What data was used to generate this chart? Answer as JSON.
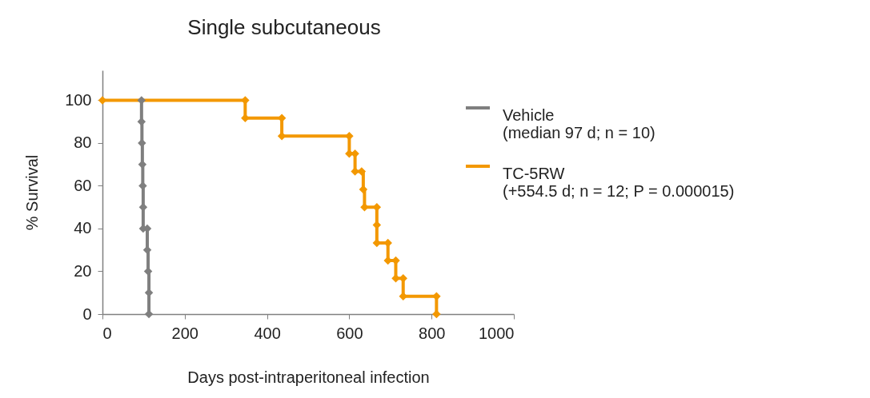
{
  "chart_data": {
    "type": "step",
    "title": "Single subcutaneous",
    "xlabel": "Days post-intraperitoneal infection",
    "ylabel": "% Survival",
    "series": [
      {
        "name": "Vehicle\n(median 97 d; n = 10)",
        "color": "#7f7f7f",
        "x": [
          95,
          95,
          96,
          97,
          98,
          99,
          99,
          109,
          109,
          111,
          113,
          113
        ],
        "values": [
          100,
          90,
          80,
          70,
          60,
          50,
          40,
          40,
          30,
          20,
          10,
          0
        ]
      },
      {
        "name": "TC-5RW\n(+554.5 d; n = 12; P = 0.000015)",
        "color": "#f39800",
        "x": [
          0,
          347,
          347,
          436,
          436,
          600,
          600,
          614,
          614,
          630,
          634,
          637,
          667,
          667,
          667,
          694,
          694,
          713,
          713,
          731,
          731,
          812,
          812
        ],
        "values": [
          100,
          100,
          91.7,
          91.7,
          83.3,
          83.3,
          75,
          75,
          66.7,
          66.7,
          58.3,
          50,
          50,
          41.7,
          33.3,
          33.3,
          25,
          25,
          16.7,
          16.7,
          8.3,
          8.3,
          0
        ]
      }
    ],
    "xlim": [
      0,
      1000
    ],
    "xticks": [
      0,
      200,
      400,
      600,
      800,
      1000
    ],
    "ylim": [
      0,
      114
    ],
    "yticks": [
      0,
      20,
      40,
      60,
      80,
      100
    ],
    "grid": false,
    "legend": "right",
    "marker": "diamond",
    "line_style": "solid"
  }
}
